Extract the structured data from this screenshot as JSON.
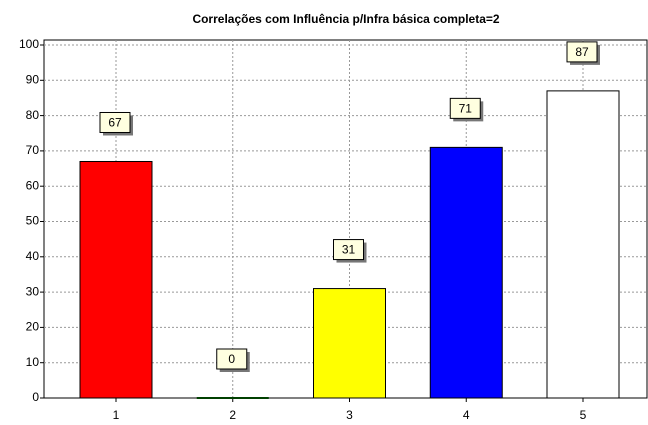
{
  "chart_data": {
    "type": "bar",
    "title": "Correlações com Influência p/Infra básica completa=2",
    "categories": [
      "1",
      "2",
      "3",
      "4",
      "5"
    ],
    "values": [
      67,
      0,
      31,
      71,
      87
    ],
    "colors": [
      "#ff0000",
      "#008000",
      "#ffff00",
      "#0000ff",
      "#ffffff"
    ],
    "ylim": [
      0,
      100
    ],
    "yticks": [
      0,
      10,
      20,
      30,
      40,
      50,
      60,
      70,
      80,
      90,
      100
    ],
    "grid": true
  }
}
